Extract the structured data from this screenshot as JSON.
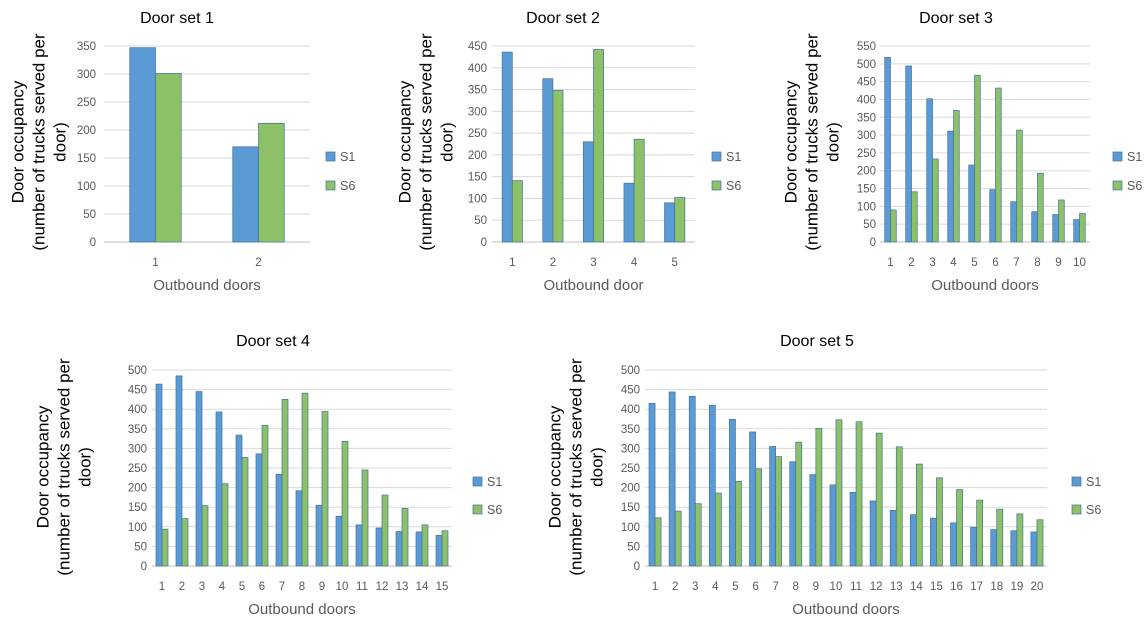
{
  "chart_data": [
    {
      "type": "bar",
      "title": "Door set 1",
      "xlabel": "Outbound doors",
      "ylabel": [
        "Door occupancy",
        "(number of trucks served per",
        "door)"
      ],
      "categories": [
        "1",
        "2"
      ],
      "ylim": [
        0,
        350
      ],
      "ytick_step": 50,
      "grid": true,
      "legend_position": "right",
      "series": [
        {
          "name": "S1",
          "color": "#5B9BD5",
          "values": [
            347,
            170
          ]
        },
        {
          "name": "S6",
          "color": "#8CC168",
          "values": [
            301,
            212
          ]
        }
      ]
    },
    {
      "type": "bar",
      "title": "Door set 2",
      "xlabel": "Outbound door",
      "ylabel": [
        "Door occupancy",
        "(number of trucks served per",
        "door)"
      ],
      "categories": [
        "1",
        "2",
        "3",
        "4",
        "5"
      ],
      "ylim": [
        0,
        450
      ],
      "ytick_step": 50,
      "grid": true,
      "legend_position": "right",
      "series": [
        {
          "name": "S1",
          "color": "#5B9BD5",
          "values": [
            436,
            375,
            230,
            135,
            90
          ]
        },
        {
          "name": "S6",
          "color": "#8CC168",
          "values": [
            141,
            348,
            442,
            236,
            102
          ]
        }
      ]
    },
    {
      "type": "bar",
      "title": "Door set 3",
      "xlabel": "Outbound doors",
      "ylabel": [
        "Door occupancy",
        "(number of trucks served per",
        "door)"
      ],
      "categories": [
        "1",
        "2",
        "3",
        "4",
        "5",
        "6",
        "7",
        "8",
        "9",
        "10"
      ],
      "ylim": [
        0,
        550
      ],
      "ytick_step": 50,
      "grid": true,
      "legend_position": "right",
      "series": [
        {
          "name": "S1",
          "color": "#5B9BD5",
          "values": [
            518,
            494,
            402,
            311,
            216,
            147,
            113,
            85,
            77,
            63
          ]
        },
        {
          "name": "S6",
          "color": "#8CC168",
          "values": [
            90,
            141,
            233,
            369,
            468,
            432,
            314,
            193,
            118,
            80
          ]
        }
      ]
    },
    {
      "type": "bar",
      "title": "Door set 4",
      "xlabel": "Outbound doors",
      "ylabel": [
        "Door occupancy",
        "(number of trucks served per",
        "door)"
      ],
      "categories": [
        "1",
        "2",
        "3",
        "4",
        "5",
        "6",
        "7",
        "8",
        "9",
        "10",
        "11",
        "12",
        "13",
        "14",
        "15"
      ],
      "ylim": [
        0,
        500
      ],
      "ytick_step": 50,
      "grid": true,
      "legend_position": "right",
      "series": [
        {
          "name": "S1",
          "color": "#5B9BD5",
          "values": [
            464,
            485,
            445,
            393,
            334,
            286,
            234,
            192,
            155,
            127,
            105,
            97,
            88,
            87,
            78
          ]
        },
        {
          "name": "S6",
          "color": "#8CC168",
          "values": [
            94,
            121,
            154,
            210,
            277,
            359,
            425,
            441,
            394,
            318,
            245,
            181,
            147,
            105,
            90
          ]
        }
      ]
    },
    {
      "type": "bar",
      "title": "Door set 5",
      "xlabel": "Outbound doors",
      "ylabel": [
        "Door occupancy",
        "(number of trucks served per",
        "door)"
      ],
      "categories": [
        "1",
        "2",
        "3",
        "4",
        "5",
        "6",
        "7",
        "8",
        "9",
        "10",
        "11",
        "12",
        "13",
        "14",
        "15",
        "16",
        "17",
        "18",
        "19",
        "20"
      ],
      "ylim": [
        0,
        500
      ],
      "ytick_step": 50,
      "grid": true,
      "legend_position": "right",
      "series": [
        {
          "name": "S1",
          "color": "#5B9BD5",
          "values": [
            415,
            444,
            433,
            410,
            374,
            342,
            305,
            266,
            233,
            207,
            188,
            166,
            142,
            131,
            122,
            110,
            99,
            93,
            90,
            87
          ]
        },
        {
          "name": "S6",
          "color": "#8CC168",
          "values": [
            123,
            140,
            159,
            186,
            216,
            248,
            279,
            316,
            351,
            373,
            368,
            339,
            304,
            260,
            225,
            195,
            168,
            145,
            133,
            118
          ]
        }
      ]
    }
  ]
}
